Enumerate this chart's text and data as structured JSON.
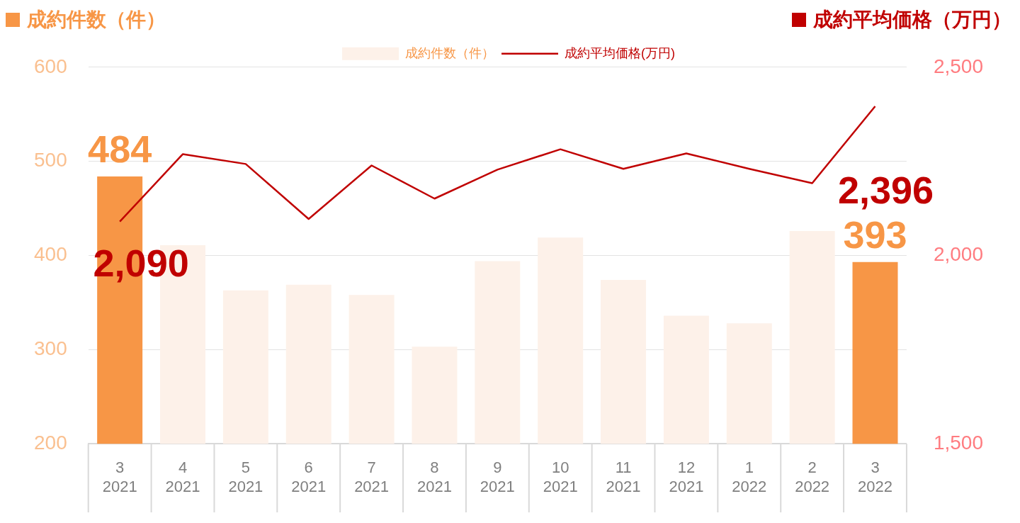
{
  "chart_data": {
    "type": "bar",
    "ylabel": "成約件数（件）",
    "y2label": "成約平均価格（万円）",
    "categories": [
      "3\n2021",
      "4\n2021",
      "5\n2021",
      "6\n2021",
      "7\n2021",
      "8\n2021",
      "9\n2021",
      "10\n2021",
      "11\n2021",
      "12\n2021",
      "1\n2022",
      "2\n2022",
      "3\n2022"
    ],
    "series": [
      {
        "name": "成約件数（件）",
        "color": "#fdf1e9",
        "colors": [
          "#f79646",
          "#fdf1e9",
          "#fdf1e9",
          "#fdf1e9",
          "#fdf1e9",
          "#fdf1e9",
          "#fdf1e9",
          "#fdf1e9",
          "#fdf1e9",
          "#fdf1e9",
          "#fdf1e9",
          "#fdf1e9",
          "#f79646"
        ],
        "values": [
          484,
          411,
          363,
          369,
          358,
          303,
          394,
          419,
          374,
          336,
          328,
          426,
          393
        ],
        "value_labels": [
          "484",
          null,
          null,
          null,
          null,
          null,
          null,
          null,
          null,
          null,
          null,
          null,
          "393"
        ]
      },
      {
        "name": "成約平均価格(万円)",
        "type": "line",
        "axis": "y2",
        "color": "#c00000",
        "values": [
          2090,
          2269,
          2243,
          2097,
          2239,
          2151,
          2228,
          2282,
          2230,
          2271,
          2230,
          2192,
          2396
        ],
        "value_labels": [
          "2,090",
          null,
          null,
          null,
          null,
          null,
          null,
          null,
          null,
          null,
          null,
          null,
          "2,396"
        ]
      }
    ],
    "ylim": [
      200,
      600
    ],
    "yticks": [
      200,
      300,
      400,
      500,
      600
    ],
    "y2lim": [
      1500,
      2500
    ],
    "y2ticks": [
      {
        "value": 1500,
        "label": "1,500"
      },
      {
        "value": 2000,
        "label": "2,000"
      },
      {
        "value": 2500,
        "label": "2,500"
      }
    ],
    "grid": "y",
    "legend": "top",
    "marker": "none"
  }
}
